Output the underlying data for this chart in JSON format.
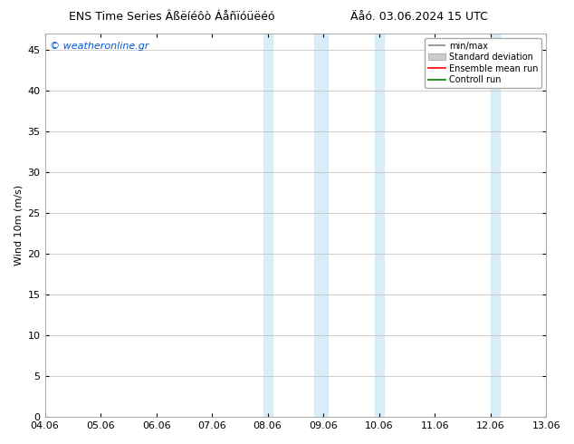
{
  "title_left": "ENS Time Series Âßëíéôò Áåñïóüëéó",
  "title_right": "Äåó. 03.06.2024 15 UTC",
  "ylabel": "Wind 10m (m/s)",
  "watermark": "© weatheronline.gr",
  "xlabels": [
    "04.06",
    "05.06",
    "06.06",
    "07.06",
    "08.06",
    "09.06",
    "10.06",
    "11.06",
    "12.06",
    "13.06"
  ],
  "yticks": [
    0,
    5,
    10,
    15,
    20,
    25,
    30,
    35,
    40,
    45
  ],
  "ylim": [
    0,
    47
  ],
  "xlim": [
    0,
    9
  ],
  "shaded_regions": [
    [
      3.92,
      4.08
    ],
    [
      4.83,
      5.08
    ],
    [
      5.92,
      6.08
    ],
    [
      8.0,
      8.17
    ]
  ],
  "shaded_color": "#d8edf8",
  "bg_color": "#ffffff",
  "plot_bg_color": "#ffffff",
  "grid_color": "#bbbbbb",
  "watermark_color": "#0055cc",
  "font_size": 8,
  "title_font_size": 9
}
